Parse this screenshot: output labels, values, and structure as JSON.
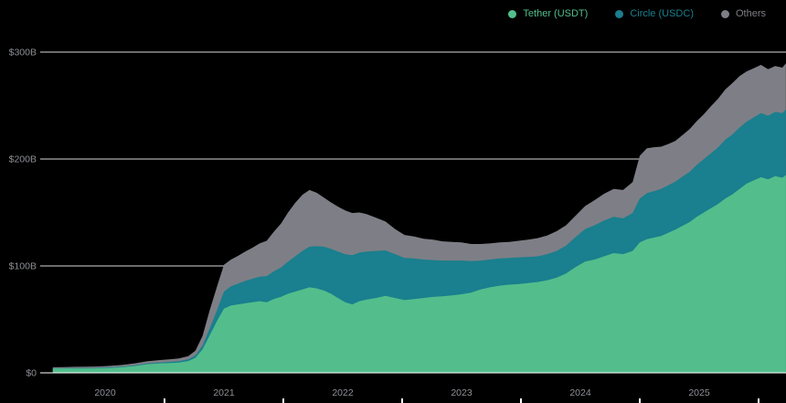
{
  "colors": {
    "background": "#000000",
    "grid": "#d9d9d9",
    "axis_line": "#ffffff",
    "axis_text": "#8e9196",
    "tick_mark": "#ffffff"
  },
  "chart_data": {
    "type": "area",
    "stacked": true,
    "title": "",
    "xlabel": "",
    "ylabel": "",
    "legend_position": "top-right",
    "grid": true,
    "x": [
      2019.56,
      2019.65,
      2019.75,
      2019.85,
      2019.95,
      2020.05,
      2020.15,
      2020.25,
      2020.35,
      2020.45,
      2020.55,
      2020.62,
      2020.7,
      2020.76,
      2020.82,
      2020.88,
      2020.94,
      2021.0,
      2021.06,
      2021.12,
      2021.18,
      2021.24,
      2021.3,
      2021.36,
      2021.42,
      2021.48,
      2021.54,
      2021.6,
      2021.66,
      2021.72,
      2021.78,
      2021.84,
      2021.9,
      2021.96,
      2022.02,
      2022.08,
      2022.14,
      2022.2,
      2022.28,
      2022.36,
      2022.44,
      2022.52,
      2022.6,
      2022.68,
      2022.76,
      2022.84,
      2022.92,
      2023.0,
      2023.08,
      2023.16,
      2023.24,
      2023.32,
      2023.4,
      2023.48,
      2023.56,
      2023.64,
      2023.72,
      2023.8,
      2023.88,
      2023.96,
      2024.04,
      2024.12,
      2024.2,
      2024.28,
      2024.36,
      2024.44,
      2024.5,
      2024.56,
      2024.62,
      2024.68,
      2024.74,
      2024.8,
      2024.86,
      2024.92,
      2024.98,
      2025.04,
      2025.1,
      2025.16,
      2025.22,
      2025.28,
      2025.34,
      2025.4,
      2025.46,
      2025.52,
      2025.58,
      2025.64,
      2025.7,
      2025.73
    ],
    "series": [
      {
        "name": "Tether (USDT)",
        "color": "#53be8c",
        "values": [
          4.0,
          4.0,
          4.1,
          4.1,
          4.3,
          4.7,
          5.3,
          6.4,
          8.0,
          8.8,
          9.2,
          9.6,
          11.0,
          14.0,
          22.0,
          35.0,
          48.0,
          60.0,
          63.0,
          64.0,
          65.0,
          66.0,
          67.0,
          66.0,
          69.0,
          71.0,
          74.0,
          76.0,
          78.0,
          80.0,
          79.0,
          77.0,
          74.0,
          70.0,
          66.0,
          64.0,
          67.0,
          68.5,
          70.0,
          72.0,
          70.0,
          68.0,
          69.0,
          70.0,
          71.0,
          71.5,
          72.5,
          73.5,
          75.0,
          78.0,
          80.0,
          81.5,
          82.5,
          83.0,
          84.0,
          85.0,
          86.5,
          89.0,
          93.0,
          99.0,
          104.0,
          106.0,
          109.0,
          112.0,
          111.0,
          114.0,
          122.0,
          125.0,
          126.5,
          128.0,
          131.0,
          134.0,
          137.5,
          141.0,
          146.0,
          150.0,
          154.0,
          158.0,
          163.0,
          167.0,
          172.0,
          177.0,
          180.0,
          183.0,
          181.0,
          184.0,
          182.5,
          185.0
        ]
      },
      {
        "name": "Circle (USDC)",
        "color": "#1a7f8e",
        "values": [
          0.4,
          0.4,
          0.5,
          0.5,
          0.5,
          0.6,
          0.6,
          0.7,
          0.8,
          0.9,
          1.1,
          1.3,
          1.6,
          2.2,
          3.5,
          6.5,
          10.0,
          16.0,
          18.0,
          19.5,
          21.0,
          22.0,
          23.0,
          24.5,
          26.0,
          27.5,
          30.0,
          33.0,
          36.0,
          38.0,
          39.5,
          41.0,
          42.0,
          43.5,
          45.0,
          46.0,
          45.5,
          45.0,
          44.0,
          42.5,
          41.0,
          39.5,
          38.0,
          36.0,
          34.5,
          33.5,
          32.5,
          31.5,
          29.5,
          27.0,
          26.0,
          25.5,
          25.0,
          25.0,
          24.5,
          24.0,
          24.5,
          25.0,
          26.0,
          28.0,
          30.5,
          32.0,
          33.5,
          34.0,
          33.5,
          35.5,
          41.0,
          43.0,
          43.5,
          44.0,
          44.5,
          45.0,
          46.0,
          47.0,
          48.5,
          50.0,
          51.5,
          53.0,
          55.0,
          56.0,
          57.5,
          58.0,
          59.0,
          60.0,
          59.5,
          60.0,
          60.5,
          61.5
        ]
      },
      {
        "name": "Others",
        "color": "#7e7f86",
        "values": [
          0.8,
          0.9,
          1.0,
          1.1,
          1.2,
          1.3,
          1.5,
          1.8,
          2.0,
          2.2,
          2.4,
          2.6,
          3.0,
          4.5,
          9.0,
          17.0,
          22.0,
          25.0,
          25.0,
          26.0,
          27.5,
          29.0,
          31.0,
          33.0,
          37.0,
          41.0,
          46.0,
          50.0,
          52.5,
          53.0,
          50.0,
          46.0,
          43.5,
          42.0,
          41.0,
          39.5,
          37.5,
          35.0,
          31.0,
          27.0,
          23.5,
          21.5,
          20.5,
          19.5,
          19.0,
          18.0,
          17.5,
          17.0,
          16.0,
          15.5,
          15.0,
          15.0,
          15.0,
          15.5,
          16.0,
          17.0,
          17.5,
          18.5,
          19.0,
          20.0,
          21.5,
          23.5,
          25.0,
          26.0,
          26.5,
          29.0,
          40.0,
          42.0,
          41.0,
          39.5,
          38.5,
          38.0,
          39.0,
          40.0,
          41.0,
          42.0,
          44.0,
          45.5,
          47.0,
          48.0,
          48.0,
          47.0,
          46.0,
          45.0,
          43.5,
          43.0,
          42.5,
          43.0
        ]
      }
    ],
    "y_axis": {
      "max": 300,
      "ticks": [
        0,
        100,
        200,
        300
      ],
      "labels": [
        "$0",
        "$100B",
        "$200B",
        "$300B"
      ]
    },
    "x_axis": {
      "label_years": [
        2020,
        2021,
        2022,
        2023,
        2024,
        2025
      ],
      "labels": [
        "2020",
        "2021",
        "2022",
        "2023",
        "2024",
        "2025"
      ],
      "minor_tick_years": [
        2020.5,
        2021.5,
        2022.5,
        2023.5,
        2024.5,
        2025.5
      ]
    }
  }
}
